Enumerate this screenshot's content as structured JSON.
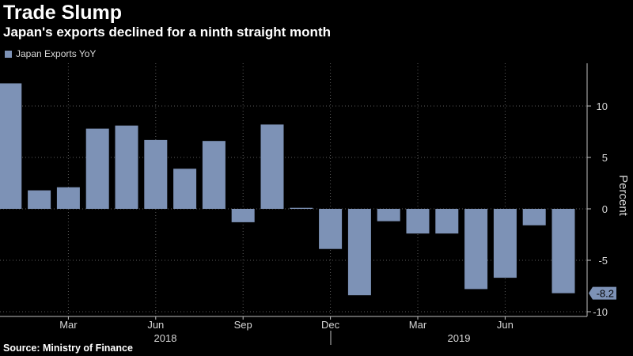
{
  "header": {
    "title": "Trade Slump",
    "subtitle": "Japan's exports declined for a ninth straight month"
  },
  "legend": {
    "label": "Japan Exports YoY"
  },
  "source": "Source: Ministry of Finance",
  "colors": {
    "background": "#000000",
    "bar": "#7d92b6",
    "grid": "#5a5a5a",
    "callout": "#7d92b6"
  },
  "chart_data": {
    "type": "bar",
    "title": "Trade Slump",
    "subtitle": "Japan's exports declined for a ninth straight month",
    "xlabel": "",
    "ylabel": "Percent",
    "ylim": [
      -10,
      14
    ],
    "yticks": [
      10,
      5,
      0,
      -5,
      -10
    ],
    "grid": true,
    "legend": "top-left",
    "series": [
      {
        "name": "Japan Exports YoY",
        "categories": [
          "2018-01",
          "2018-02",
          "2018-03",
          "2018-04",
          "2018-05",
          "2018-06",
          "2018-07",
          "2018-08",
          "2018-09",
          "2018-10",
          "2018-11",
          "2018-12",
          "2019-01",
          "2019-02",
          "2019-03",
          "2019-04",
          "2019-05",
          "2019-06",
          "2019-07",
          "2019-08"
        ],
        "values": [
          12.2,
          1.8,
          2.1,
          7.8,
          8.1,
          6.7,
          3.9,
          6.6,
          -1.3,
          8.2,
          0.1,
          -3.9,
          -8.4,
          -1.2,
          -2.4,
          -2.4,
          -7.8,
          -6.7,
          -1.6,
          -8.2
        ]
      }
    ],
    "x_tick_labels": [
      "Mar",
      "Jun",
      "Sep",
      "Dec",
      "Mar",
      "Jun"
    ],
    "x_tick_positions": [
      2,
      5,
      8,
      11,
      14,
      17
    ],
    "year_labels": [
      {
        "label": "2018",
        "center": 5
      },
      {
        "label": "2019",
        "center": 15.5
      }
    ],
    "last_value_label": "-8.2"
  }
}
